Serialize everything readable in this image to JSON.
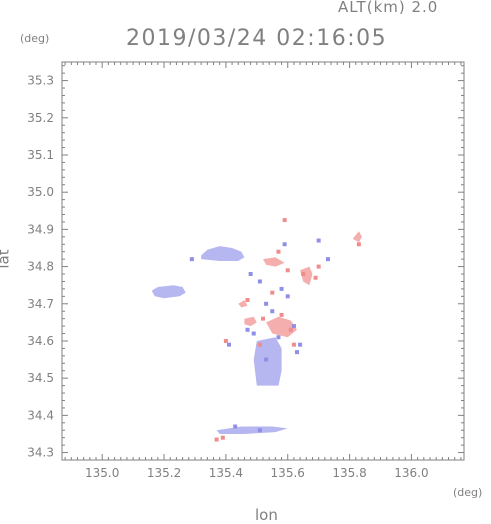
{
  "chart_data": {
    "type": "heatmap",
    "title": "2019/03/24 02:16:05",
    "subtitle": "ALT(km) 2.0",
    "xlabel": "lon",
    "ylabel": "lat",
    "xunit": "(deg)",
    "yunit": "(deg)",
    "xlim": [
      134.87,
      136.17
    ],
    "ylim": [
      34.28,
      35.35
    ],
    "xticks": [
      "135.0",
      "135.2",
      "135.4",
      "135.6",
      "135.8",
      "136.0"
    ],
    "yticks": [
      "34.3",
      "34.4",
      "34.5",
      "34.6",
      "34.7",
      "34.8",
      "34.9",
      "35.0",
      "35.1",
      "35.2",
      "35.3"
    ],
    "colors": {
      "negative": "#8f8fe8",
      "positive": "#f08c8c",
      "frame": "#808080"
    },
    "regions": [
      {
        "sign": "negative",
        "polygon": [
          [
            135.32,
            34.83
          ],
          [
            135.34,
            34.845
          ],
          [
            135.38,
            34.855
          ],
          [
            135.42,
            34.85
          ],
          [
            135.45,
            34.84
          ],
          [
            135.46,
            34.825
          ],
          [
            135.44,
            34.815
          ],
          [
            135.38,
            34.815
          ],
          [
            135.32,
            34.82
          ]
        ]
      },
      {
        "sign": "negative",
        "polygon": [
          [
            135.16,
            34.735
          ],
          [
            135.18,
            34.745
          ],
          [
            135.23,
            34.75
          ],
          [
            135.26,
            34.745
          ],
          [
            135.27,
            34.73
          ],
          [
            135.25,
            34.72
          ],
          [
            135.2,
            34.715
          ],
          [
            135.17,
            34.72
          ]
        ]
      },
      {
        "sign": "negative",
        "polygon": [
          [
            135.5,
            34.6
          ],
          [
            135.56,
            34.61
          ],
          [
            135.58,
            34.58
          ],
          [
            135.58,
            34.52
          ],
          [
            135.57,
            34.48
          ],
          [
            135.5,
            34.48
          ],
          [
            135.49,
            34.55
          ]
        ]
      },
      {
        "sign": "negative",
        "polygon": [
          [
            135.37,
            34.36
          ],
          [
            135.45,
            34.37
          ],
          [
            135.55,
            34.37
          ],
          [
            135.6,
            34.365
          ],
          [
            135.56,
            34.355
          ],
          [
            135.46,
            34.35
          ],
          [
            135.38,
            34.35
          ]
        ]
      },
      {
        "sign": "positive",
        "polygon": [
          [
            135.64,
            34.79
          ],
          [
            135.67,
            34.8
          ],
          [
            135.68,
            34.78
          ],
          [
            135.67,
            34.75
          ],
          [
            135.65,
            34.76
          ]
        ]
      },
      {
        "sign": "positive",
        "polygon": [
          [
            135.53,
            34.65
          ],
          [
            135.57,
            34.665
          ],
          [
            135.61,
            34.655
          ],
          [
            135.63,
            34.63
          ],
          [
            135.6,
            34.61
          ],
          [
            135.55,
            34.62
          ]
        ]
      },
      {
        "sign": "positive",
        "polygon": [
          [
            135.46,
            34.66
          ],
          [
            135.49,
            34.665
          ],
          [
            135.5,
            34.65
          ],
          [
            135.48,
            34.64
          ],
          [
            135.46,
            34.645
          ]
        ]
      },
      {
        "sign": "positive",
        "polygon": [
          [
            135.52,
            34.82
          ],
          [
            135.56,
            34.825
          ],
          [
            135.59,
            34.81
          ],
          [
            135.56,
            34.8
          ],
          [
            135.53,
            34.805
          ]
        ]
      },
      {
        "sign": "positive",
        "polygon": [
          [
            135.81,
            34.875
          ],
          [
            135.83,
            34.895
          ],
          [
            135.84,
            34.88
          ],
          [
            135.83,
            34.865
          ]
        ]
      },
      {
        "sign": "positive",
        "polygon": [
          [
            135.44,
            34.7
          ],
          [
            135.46,
            34.71
          ],
          [
            135.47,
            34.695
          ],
          [
            135.45,
            34.69
          ]
        ]
      }
    ],
    "points": [
      {
        "sign": "negative",
        "x": 135.29,
        "y": 34.82
      },
      {
        "sign": "negative",
        "x": 135.48,
        "y": 34.78
      },
      {
        "sign": "negative",
        "x": 135.51,
        "y": 34.76
      },
      {
        "sign": "negative",
        "x": 135.53,
        "y": 34.7
      },
      {
        "sign": "negative",
        "x": 135.55,
        "y": 34.68
      },
      {
        "sign": "negative",
        "x": 135.58,
        "y": 34.74
      },
      {
        "sign": "negative",
        "x": 135.6,
        "y": 34.72
      },
      {
        "sign": "negative",
        "x": 135.62,
        "y": 34.64
      },
      {
        "sign": "negative",
        "x": 135.64,
        "y": 34.59
      },
      {
        "sign": "negative",
        "x": 135.63,
        "y": 34.57
      },
      {
        "sign": "negative",
        "x": 135.57,
        "y": 34.61
      },
      {
        "sign": "negative",
        "x": 135.59,
        "y": 34.86
      },
      {
        "sign": "negative",
        "x": 135.7,
        "y": 34.87
      },
      {
        "sign": "negative",
        "x": 135.73,
        "y": 34.82
      },
      {
        "sign": "negative",
        "x": 135.47,
        "y": 34.63
      },
      {
        "sign": "negative",
        "x": 135.49,
        "y": 34.62
      },
      {
        "sign": "negative",
        "x": 135.43,
        "y": 34.37
      },
      {
        "sign": "negative",
        "x": 135.51,
        "y": 34.36
      },
      {
        "sign": "negative",
        "x": 135.41,
        "y": 34.59
      },
      {
        "sign": "negative",
        "x": 135.53,
        "y": 34.55
      },
      {
        "sign": "positive",
        "x": 135.59,
        "y": 34.925
      },
      {
        "sign": "positive",
        "x": 135.47,
        "y": 34.71
      },
      {
        "sign": "positive",
        "x": 135.52,
        "y": 34.66
      },
      {
        "sign": "positive",
        "x": 135.58,
        "y": 34.67
      },
      {
        "sign": "positive",
        "x": 135.61,
        "y": 34.63
      },
      {
        "sign": "positive",
        "x": 135.62,
        "y": 34.59
      },
      {
        "sign": "positive",
        "x": 135.65,
        "y": 34.78
      },
      {
        "sign": "positive",
        "x": 135.69,
        "y": 34.77
      },
      {
        "sign": "positive",
        "x": 135.7,
        "y": 34.8
      },
      {
        "sign": "positive",
        "x": 135.57,
        "y": 34.84
      },
      {
        "sign": "positive",
        "x": 135.6,
        "y": 34.79
      },
      {
        "sign": "positive",
        "x": 135.55,
        "y": 34.73
      },
      {
        "sign": "positive",
        "x": 135.39,
        "y": 34.34
      },
      {
        "sign": "positive",
        "x": 135.37,
        "y": 34.335
      },
      {
        "sign": "positive",
        "x": 135.4,
        "y": 34.6
      },
      {
        "sign": "positive",
        "x": 135.51,
        "y": 34.59
      },
      {
        "sign": "positive",
        "x": 135.83,
        "y": 34.86
      }
    ]
  }
}
